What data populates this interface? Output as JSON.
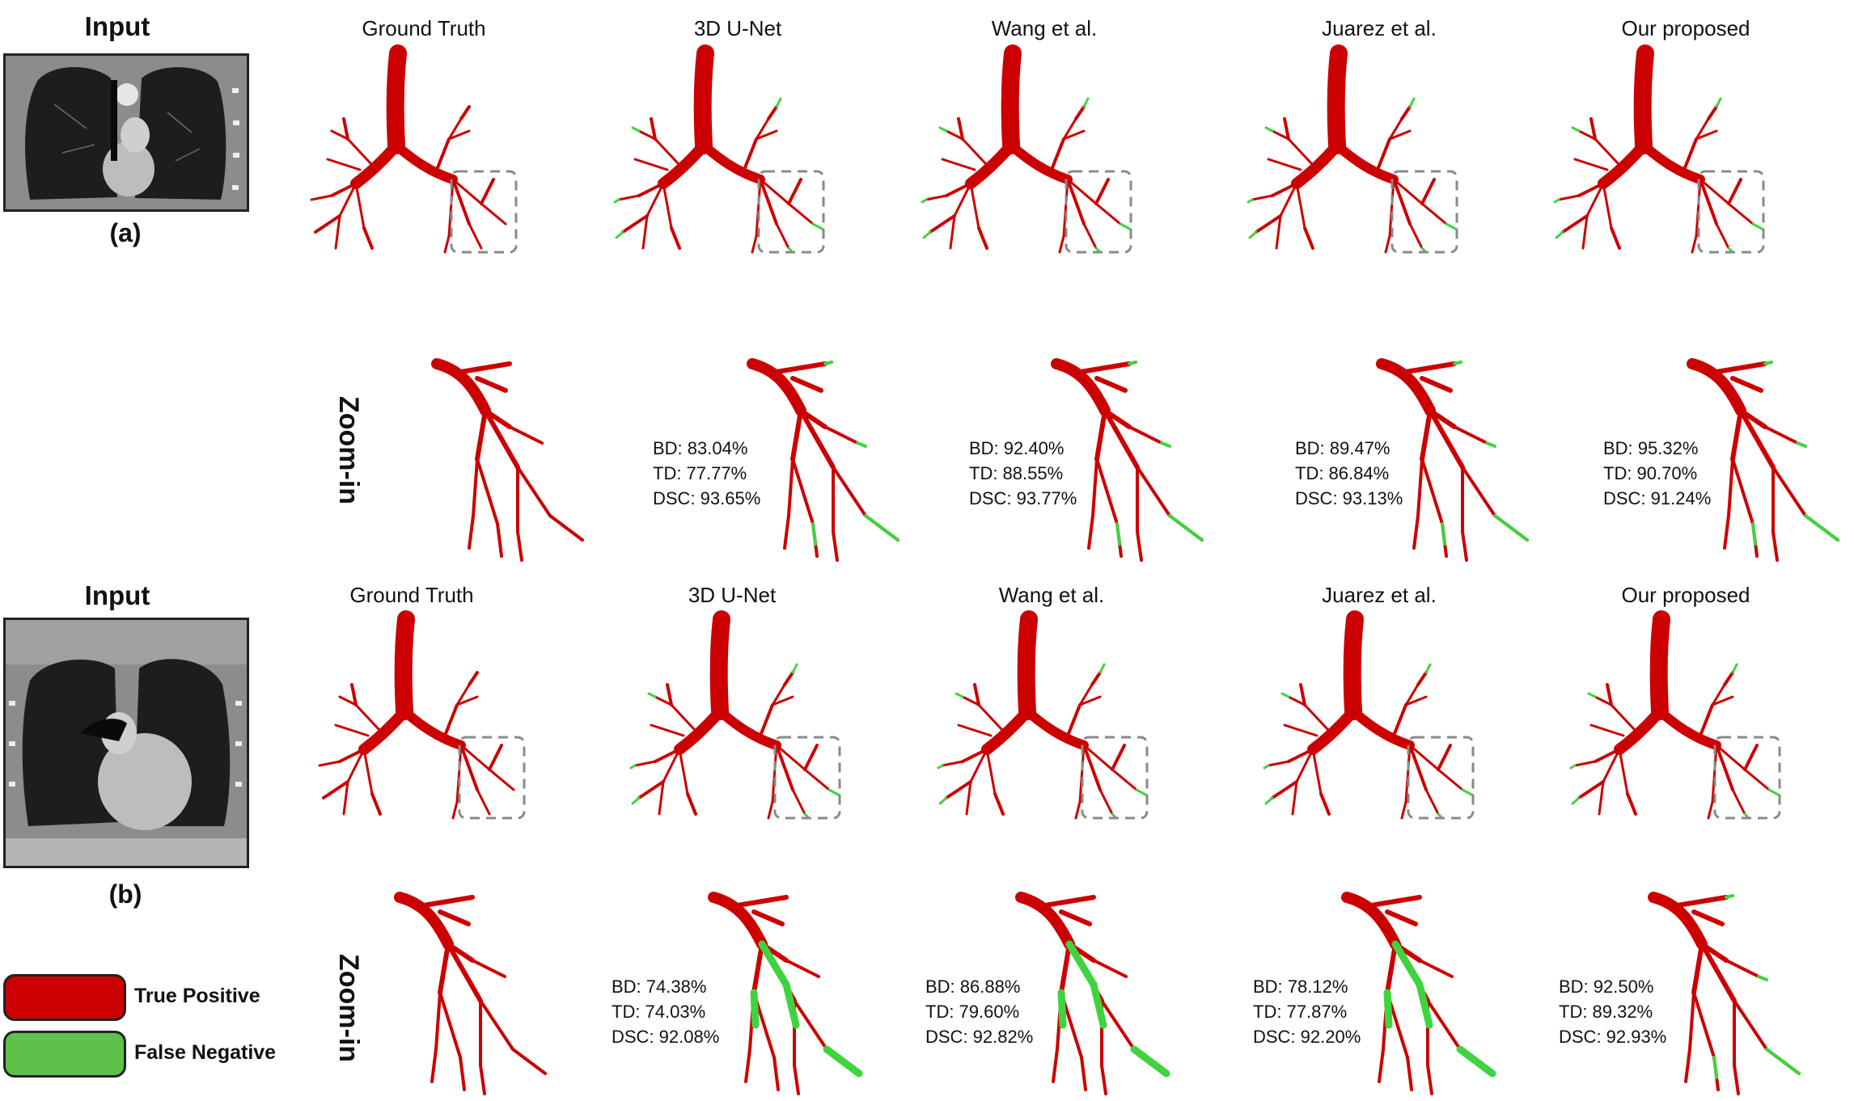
{
  "colors": {
    "true_positive": "#cc0000",
    "false_negative": "#3fd43f",
    "dash_box": "#8a8a8a"
  },
  "columns": [
    "Ground Truth",
    "3D U-Net",
    "Wang et al.",
    "Juarez et al.",
    "Our proposed"
  ],
  "rows": [
    {
      "input_label": "Input",
      "sub_label": "(a)",
      "zoom_label": "Zoom-in",
      "metrics": [
        null,
        {
          "bd": "BD: 83.04%",
          "td": "TD: 77.77%",
          "dsc": "DSC: 93.65%"
        },
        {
          "bd": "BD: 92.40%",
          "td": "TD: 88.55%",
          "dsc": "DSC: 93.77%"
        },
        {
          "bd": "BD: 89.47%",
          "td": "TD: 86.84%",
          "dsc": "DSC: 93.13%"
        },
        {
          "bd": "BD: 95.32%",
          "td": "TD: 90.70%",
          "dsc": "DSC: 91.24%"
        }
      ]
    },
    {
      "input_label": "Input",
      "sub_label": "(b)",
      "zoom_label": "Zoom-in",
      "metrics": [
        null,
        {
          "bd": "BD: 74.38%",
          "td": "TD: 74.03%",
          "dsc": "DSC: 92.08%"
        },
        {
          "bd": "BD: 86.88%",
          "td": "TD: 79.60%",
          "dsc": "DSC: 92.82%"
        },
        {
          "bd": "BD: 78.12%",
          "td": "TD: 77.87%",
          "dsc": "DSC: 92.20%"
        },
        {
          "bd": "BD: 92.50%",
          "td": "TD: 89.32%",
          "dsc": "DSC: 92.93%"
        }
      ]
    }
  ],
  "legend": {
    "true_positive": "True Positive",
    "false_negative": "False Negative"
  }
}
